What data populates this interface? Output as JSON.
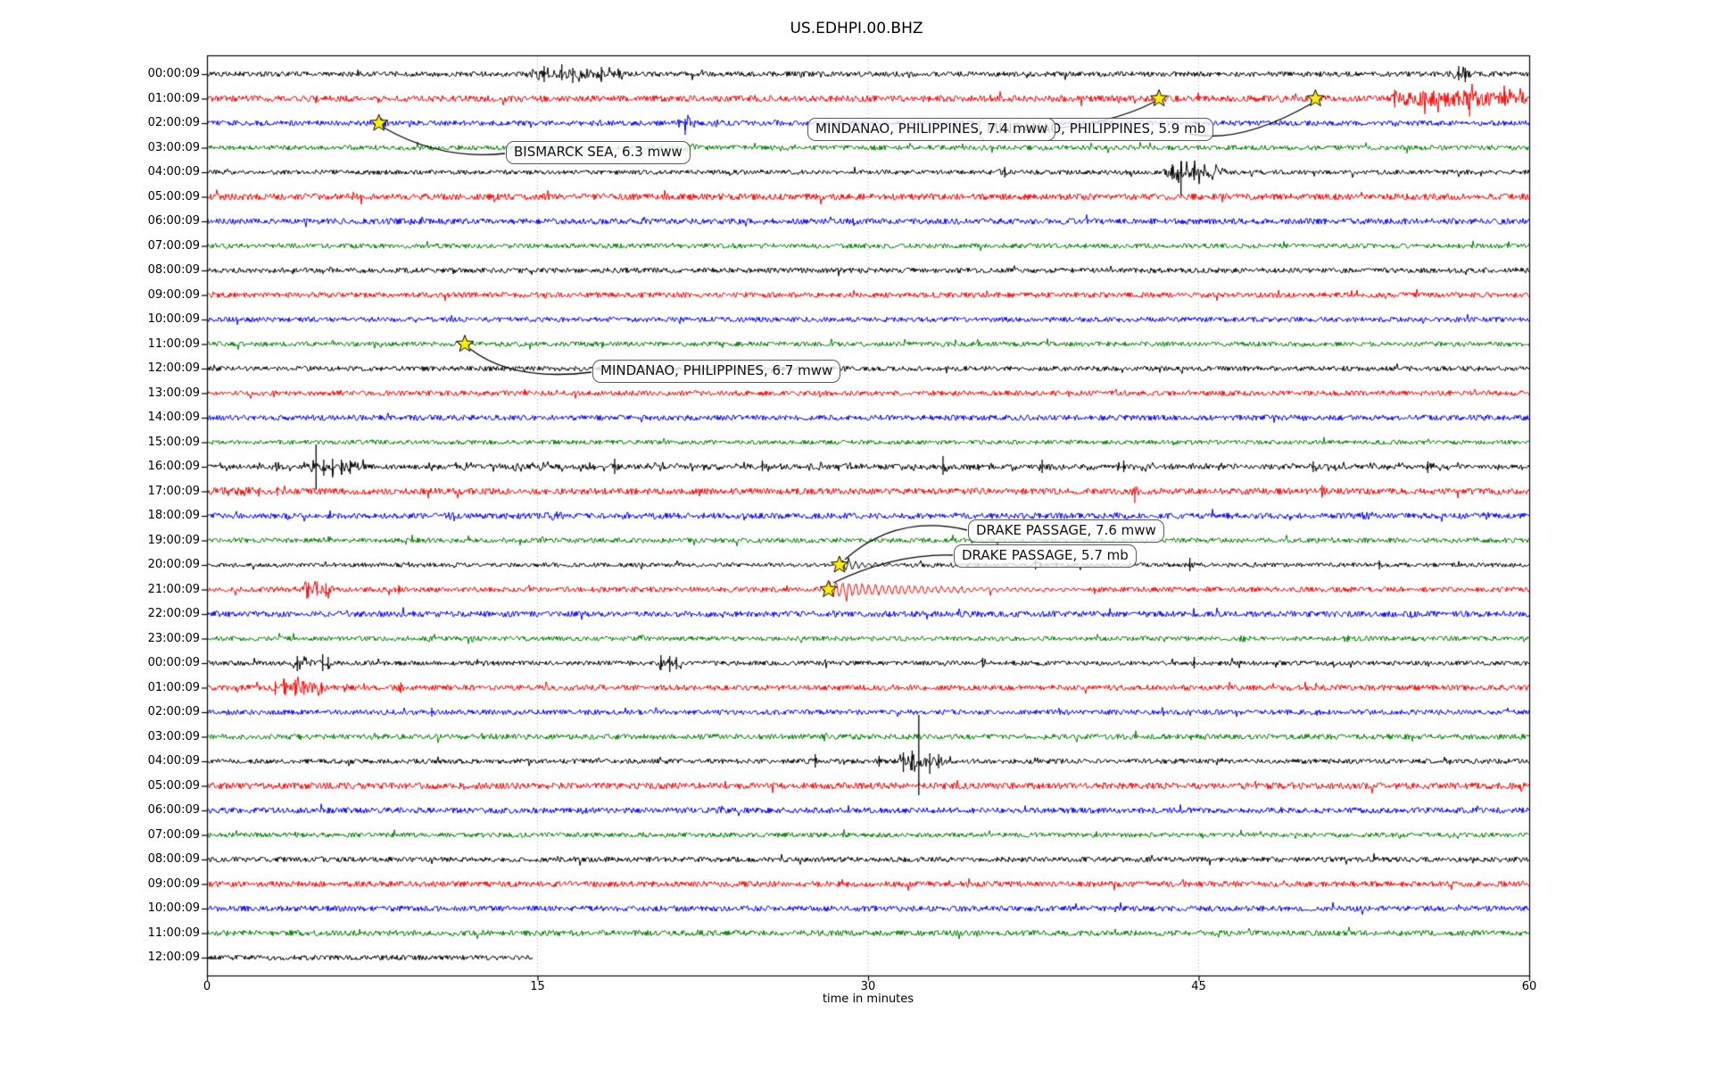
{
  "chart_data": {
    "type": "line",
    "subtype": "seismogram-helicorder-dayplot",
    "title": "US.EDHPI.00.BHZ",
    "xlabel": "time in minutes",
    "x_range": [
      0,
      60
    ],
    "x_ticks": [
      0,
      15,
      30,
      45,
      60
    ],
    "x_tick_labels": [
      "0",
      "15",
      "30",
      "45",
      "60"
    ],
    "grid_vertical_dotted_at": [
      15,
      30,
      45
    ],
    "minutes_per_row": 60,
    "trace_color_cycle": [
      "#000000",
      "#ff0000",
      "#0000ff",
      "#008000"
    ],
    "marker_color": "#ffee00",
    "rows": [
      {
        "label": "00:00:09",
        "color": "#000000"
      },
      {
        "label": "01:00:09",
        "color": "#ff0000"
      },
      {
        "label": "02:00:09",
        "color": "#0000ff"
      },
      {
        "label": "03:00:09",
        "color": "#008000"
      },
      {
        "label": "04:00:09",
        "color": "#000000"
      },
      {
        "label": "05:00:09",
        "color": "#ff0000"
      },
      {
        "label": "06:00:09",
        "color": "#0000ff"
      },
      {
        "label": "07:00:09",
        "color": "#008000"
      },
      {
        "label": "08:00:09",
        "color": "#000000"
      },
      {
        "label": "09:00:09",
        "color": "#ff0000"
      },
      {
        "label": "10:00:09",
        "color": "#0000ff"
      },
      {
        "label": "11:00:09",
        "color": "#008000"
      },
      {
        "label": "12:00:09",
        "color": "#000000"
      },
      {
        "label": "13:00:09",
        "color": "#ff0000"
      },
      {
        "label": "14:00:09",
        "color": "#0000ff"
      },
      {
        "label": "15:00:09",
        "color": "#008000"
      },
      {
        "label": "16:00:09",
        "color": "#000000"
      },
      {
        "label": "17:00:09",
        "color": "#ff0000"
      },
      {
        "label": "18:00:09",
        "color": "#0000ff"
      },
      {
        "label": "19:00:09",
        "color": "#008000"
      },
      {
        "label": "20:00:09",
        "color": "#000000"
      },
      {
        "label": "21:00:09",
        "color": "#ff0000"
      },
      {
        "label": "22:00:09",
        "color": "#0000ff"
      },
      {
        "label": "23:00:09",
        "color": "#008000"
      },
      {
        "label": "00:00:09",
        "color": "#000000"
      },
      {
        "label": "01:00:09",
        "color": "#ff0000"
      },
      {
        "label": "02:00:09",
        "color": "#0000ff"
      },
      {
        "label": "03:00:09",
        "color": "#008000"
      },
      {
        "label": "04:00:09",
        "color": "#000000"
      },
      {
        "label": "05:00:09",
        "color": "#ff0000"
      },
      {
        "label": "06:00:09",
        "color": "#0000ff"
      },
      {
        "label": "07:00:09",
        "color": "#008000"
      },
      {
        "label": "08:00:09",
        "color": "#000000"
      },
      {
        "label": "09:00:09",
        "color": "#ff0000"
      },
      {
        "label": "10:00:09",
        "color": "#0000ff"
      },
      {
        "label": "11:00:09",
        "color": "#008000"
      },
      {
        "label": "12:00:09",
        "color": "#000000",
        "data_end_min": 14.8
      }
    ],
    "events": [
      {
        "label": "MINDANAO, PHILIPPINES, 7.4 mww",
        "row": 1,
        "minute": 43.2
      },
      {
        "label": "MINDANAO, PHILIPPINES, 5.9 mb",
        "row": 1,
        "minute": 50.3
      },
      {
        "label": "BISMARCK SEA, 6.3 mww",
        "row": 2,
        "minute": 7.8
      },
      {
        "label": "MINDANAO, PHILIPPINES, 6.7 mww",
        "row": 11,
        "minute": 11.7
      },
      {
        "label": "DRAKE PASSAGE, 7.6 mww",
        "row": 20,
        "minute": 28.7
      },
      {
        "label": "DRAKE PASSAGE, 5.7 mb",
        "row": 21,
        "minute": 28.2
      }
    ],
    "activity": [
      {
        "row": 0,
        "from": 14.5,
        "to": 19.0,
        "amp": 1.8,
        "style": "spiky"
      },
      {
        "row": 0,
        "from": 56.3,
        "to": 57.6,
        "amp": 1.6,
        "style": "spiky"
      },
      {
        "row": 1,
        "from": 43.0,
        "to": 43.6,
        "amp": 1.5,
        "style": "smooth"
      },
      {
        "row": 1,
        "from": 50.1,
        "to": 50.6,
        "amp": 1.4,
        "style": "smooth"
      },
      {
        "row": 1,
        "from": 53.6,
        "to": 59.8,
        "amp": 2.6,
        "style": "spiky"
      },
      {
        "row": 2,
        "from": 7.6,
        "to": 8.3,
        "amp": 1.8,
        "style": "smooth"
      },
      {
        "row": 2,
        "from": 17.7,
        "to": 18.2,
        "amp": 1.4,
        "style": "smooth"
      },
      {
        "row": 2,
        "from": 21.3,
        "to": 22.3,
        "amp": 2.2,
        "style": "spiky"
      },
      {
        "row": 2,
        "from": 22.9,
        "to": 23.4,
        "amp": 1.6,
        "style": "smooth"
      },
      {
        "row": 2,
        "from": 25.5,
        "to": 26.0,
        "amp": 1.4,
        "style": "smooth"
      },
      {
        "row": 3,
        "from": 21.5,
        "to": 22.3,
        "amp": 1.7,
        "style": "smooth"
      },
      {
        "row": 3,
        "from": 26.3,
        "to": 26.8,
        "amp": 1.3,
        "style": "smooth"
      },
      {
        "row": 4,
        "from": 35.8,
        "to": 36.6,
        "amp": 1.4,
        "style": "smooth"
      },
      {
        "row": 4,
        "from": 43.4,
        "to": 46.2,
        "amp": 2.6,
        "style": "spiky"
      },
      {
        "row": 11,
        "from": 11.5,
        "to": 12.0,
        "amp": 1.5,
        "style": "smooth"
      },
      {
        "row": 16,
        "from": 0.0,
        "to": 60.0,
        "amp": 1.15,
        "style": "spiky"
      },
      {
        "row": 16,
        "from": 4.7,
        "to": 7.3,
        "amp": 2.4,
        "style": "spiky"
      },
      {
        "row": 16,
        "from": 18.3,
        "to": 18.9,
        "amp": 1.8,
        "style": "smooth"
      },
      {
        "row": 16,
        "from": 24.9,
        "to": 25.5,
        "amp": 1.5,
        "style": "smooth"
      },
      {
        "row": 16,
        "from": 49.7,
        "to": 51.0,
        "amp": 1.5,
        "style": "smooth"
      },
      {
        "row": 16,
        "from": 55.0,
        "to": 56.0,
        "amp": 1.4,
        "style": "smooth"
      },
      {
        "row": 17,
        "from": 0.0,
        "to": 2.5,
        "amp": 1.5,
        "style": "smooth"
      },
      {
        "row": 17,
        "from": 41.9,
        "to": 42.4,
        "amp": 1.5,
        "style": "smooth"
      },
      {
        "row": 17,
        "from": 50.3,
        "to": 50.9,
        "amp": 1.5,
        "style": "smooth"
      },
      {
        "row": 18,
        "from": 0.0,
        "to": 60.0,
        "amp": 1.1,
        "style": "smooth"
      },
      {
        "row": 18,
        "from": 3.3,
        "to": 3.8,
        "amp": 1.5,
        "style": "smooth"
      },
      {
        "row": 18,
        "from": 10.8,
        "to": 11.3,
        "amp": 1.4,
        "style": "smooth"
      },
      {
        "row": 18,
        "from": 15.2,
        "to": 16.2,
        "amp": 1.7,
        "style": "smooth"
      },
      {
        "row": 18,
        "from": 18.8,
        "to": 19.3,
        "amp": 1.4,
        "style": "smooth"
      },
      {
        "row": 18,
        "from": 52.3,
        "to": 53.0,
        "amp": 1.6,
        "style": "smooth"
      },
      {
        "row": 18,
        "from": 57.8,
        "to": 58.4,
        "amp": 1.5,
        "style": "smooth"
      },
      {
        "row": 19,
        "from": 5.3,
        "to": 5.9,
        "amp": 1.6,
        "style": "smooth"
      },
      {
        "row": 19,
        "from": 57.3,
        "to": 57.8,
        "amp": 1.3,
        "style": "smooth"
      },
      {
        "row": 20,
        "from": 28.75,
        "to": 31.5,
        "amp": 1.6,
        "style": "ring"
      },
      {
        "row": 20,
        "from": 37.4,
        "to": 37.9,
        "amp": 1.4,
        "style": "smooth"
      },
      {
        "row": 20,
        "from": 44.3,
        "to": 45.0,
        "amp": 1.5,
        "style": "smooth"
      },
      {
        "row": 20,
        "from": 47.3,
        "to": 47.8,
        "amp": 1.3,
        "style": "smooth"
      },
      {
        "row": 20,
        "from": 52.9,
        "to": 53.5,
        "amp": 1.4,
        "style": "smooth"
      },
      {
        "row": 21,
        "from": 4.3,
        "to": 5.8,
        "amp": 2.0,
        "style": "spiky"
      },
      {
        "row": 21,
        "from": 8.5,
        "to": 9.0,
        "amp": 1.4,
        "style": "smooth"
      },
      {
        "row": 21,
        "from": 28.25,
        "to": 40.0,
        "amp": 1.7,
        "style": "ring"
      },
      {
        "row": 23,
        "from": 11.8,
        "to": 12.3,
        "amp": 1.4,
        "style": "smooth"
      },
      {
        "row": 23,
        "from": 19.3,
        "to": 19.9,
        "amp": 1.6,
        "style": "smooth"
      },
      {
        "row": 23,
        "from": 38.8,
        "to": 39.3,
        "amp": 1.3,
        "style": "smooth"
      },
      {
        "row": 23,
        "from": 46.8,
        "to": 47.4,
        "amp": 1.5,
        "style": "smooth"
      },
      {
        "row": 23,
        "from": 51.3,
        "to": 51.9,
        "amp": 1.5,
        "style": "smooth"
      },
      {
        "row": 24,
        "from": 3.9,
        "to": 5.7,
        "amp": 1.6,
        "style": "spiky"
      },
      {
        "row": 24,
        "from": 20.3,
        "to": 21.6,
        "amp": 1.9,
        "style": "spiky"
      },
      {
        "row": 24,
        "from": 34.9,
        "to": 35.5,
        "amp": 1.4,
        "style": "smooth"
      },
      {
        "row": 24,
        "from": 44.6,
        "to": 45.0,
        "amp": 1.3,
        "style": "smooth"
      },
      {
        "row": 25,
        "from": 2.9,
        "to": 5.6,
        "amp": 2.0,
        "style": "spiky"
      },
      {
        "row": 25,
        "from": 8.6,
        "to": 9.1,
        "amp": 1.5,
        "style": "smooth"
      },
      {
        "row": 25,
        "from": 15.4,
        "to": 15.9,
        "amp": 1.3,
        "style": "smooth"
      },
      {
        "row": 25,
        "from": 30.8,
        "to": 31.3,
        "amp": 1.3,
        "style": "smooth"
      },
      {
        "row": 28,
        "from": 27.3,
        "to": 28.0,
        "amp": 1.5,
        "style": "smooth"
      },
      {
        "row": 28,
        "from": 31.3,
        "to": 33.6,
        "amp": 2.4,
        "style": "spiky"
      },
      {
        "row": 28,
        "from": 45.8,
        "to": 46.3,
        "amp": 1.3,
        "style": "smooth"
      }
    ],
    "spikes": [
      {
        "row": 0,
        "minute": 15.3,
        "up": 9,
        "down": 9
      },
      {
        "row": 0,
        "minute": 16.1,
        "up": 11,
        "down": 7
      },
      {
        "row": 0,
        "minute": 16.6,
        "up": 7,
        "down": 10
      },
      {
        "row": 0,
        "minute": 17.9,
        "up": 8,
        "down": 6
      },
      {
        "row": 0,
        "minute": 56.8,
        "up": 9,
        "down": 7
      },
      {
        "row": 0,
        "minute": 57.1,
        "up": 7,
        "down": 9
      },
      {
        "row": 1,
        "minute": 53.9,
        "up": 10,
        "down": 10
      },
      {
        "row": 1,
        "minute": 57.3,
        "up": 6,
        "down": 20
      },
      {
        "row": 1,
        "minute": 58.9,
        "up": 8,
        "down": 8
      },
      {
        "row": 2,
        "minute": 7.9,
        "up": 6,
        "down": 6
      },
      {
        "row": 2,
        "minute": 21.7,
        "up": 5,
        "down": 13
      },
      {
        "row": 4,
        "minute": 43.8,
        "up": 9,
        "down": 8
      },
      {
        "row": 4,
        "minute": 44.2,
        "up": 12,
        "down": 26
      },
      {
        "row": 4,
        "minute": 44.8,
        "up": 8,
        "down": 9
      },
      {
        "row": 4,
        "minute": 36.2,
        "up": 6,
        "down": 6
      },
      {
        "row": 16,
        "minute": 4.95,
        "up": 25,
        "down": 26
      },
      {
        "row": 16,
        "minute": 5.3,
        "up": 8,
        "down": 10
      },
      {
        "row": 16,
        "minute": 5.7,
        "up": 9,
        "down": 12
      },
      {
        "row": 16,
        "minute": 6.1,
        "up": 8,
        "down": 9
      },
      {
        "row": 16,
        "minute": 6.5,
        "up": 7,
        "down": 8
      },
      {
        "row": 16,
        "minute": 18.5,
        "up": 9,
        "down": 8
      },
      {
        "row": 16,
        "minute": 25.2,
        "up": 7,
        "down": 5
      },
      {
        "row": 16,
        "minute": 33.4,
        "up": 12,
        "down": 9
      },
      {
        "row": 16,
        "minute": 37.9,
        "up": 8,
        "down": 7
      },
      {
        "row": 16,
        "minute": 41.6,
        "up": 7,
        "down": 6
      },
      {
        "row": 16,
        "minute": 50.2,
        "up": 6,
        "down": 6
      },
      {
        "row": 16,
        "minute": 55.4,
        "up": 6,
        "down": 7
      },
      {
        "row": 17,
        "minute": 3.2,
        "up": 5,
        "down": 5
      },
      {
        "row": 17,
        "minute": 42.1,
        "up": 5,
        "down": 13
      },
      {
        "row": 17,
        "minute": 50.6,
        "up": 7,
        "down": 7
      },
      {
        "row": 20,
        "minute": 37.6,
        "up": 6,
        "down": 5
      },
      {
        "row": 20,
        "minute": 44.6,
        "up": 8,
        "down": 7
      },
      {
        "row": 20,
        "minute": 53.2,
        "up": 5,
        "down": 5
      },
      {
        "row": 21,
        "minute": 4.6,
        "up": 8,
        "down": 9
      },
      {
        "row": 21,
        "minute": 5.0,
        "up": 9,
        "down": 7
      },
      {
        "row": 21,
        "minute": 5.4,
        "up": 7,
        "down": 8
      },
      {
        "row": 21,
        "minute": 8.7,
        "up": 5,
        "down": 5
      },
      {
        "row": 24,
        "minute": 4.1,
        "up": 8,
        "down": 9
      },
      {
        "row": 24,
        "minute": 5.25,
        "up": 10,
        "down": 9
      },
      {
        "row": 24,
        "minute": 5.5,
        "up": 7,
        "down": 7
      },
      {
        "row": 24,
        "minute": 20.6,
        "up": 9,
        "down": 8
      },
      {
        "row": 24,
        "minute": 21.0,
        "up": 8,
        "down": 10
      },
      {
        "row": 24,
        "minute": 21.3,
        "up": 7,
        "down": 7
      },
      {
        "row": 24,
        "minute": 35.2,
        "up": 6,
        "down": 5
      },
      {
        "row": 24,
        "minute": 44.8,
        "up": 7,
        "down": 6
      },
      {
        "row": 25,
        "minute": 3.1,
        "up": 7,
        "down": 8
      },
      {
        "row": 25,
        "minute": 3.5,
        "up": 8,
        "down": 7
      },
      {
        "row": 25,
        "minute": 4.0,
        "up": 9,
        "down": 9
      },
      {
        "row": 25,
        "minute": 4.4,
        "up": 7,
        "down": 8
      },
      {
        "row": 25,
        "minute": 5.2,
        "up": 6,
        "down": 7
      },
      {
        "row": 25,
        "minute": 8.8,
        "up": 6,
        "down": 6
      },
      {
        "row": 26,
        "minute": 10.2,
        "up": 5,
        "down": 5
      },
      {
        "row": 28,
        "minute": 27.6,
        "up": 8,
        "down": 7
      },
      {
        "row": 28,
        "minute": 30.5,
        "up": 6,
        "down": 6
      },
      {
        "row": 28,
        "minute": 31.6,
        "up": 10,
        "down": 12
      },
      {
        "row": 28,
        "minute": 32.0,
        "up": 12,
        "down": 10
      },
      {
        "row": 28,
        "minute": 32.3,
        "up": 52,
        "down": 38
      },
      {
        "row": 28,
        "minute": 32.8,
        "up": 9,
        "down": 14
      },
      {
        "row": 28,
        "minute": 33.2,
        "up": 8,
        "down": 8
      }
    ]
  }
}
